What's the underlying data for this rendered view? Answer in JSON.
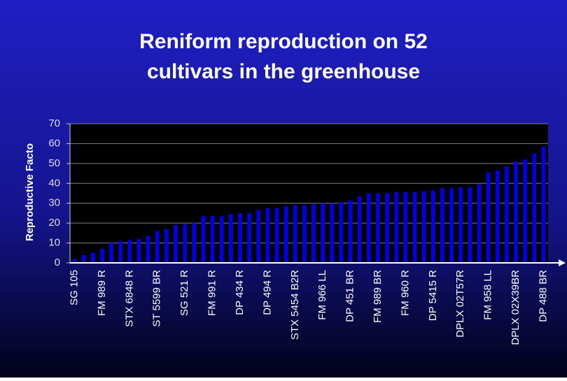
{
  "chart_data": {
    "type": "bar",
    "title": [
      "Reniform reproduction on 52",
      "cultivars in the greenhouse"
    ],
    "ylabel": "Reproductive Facto",
    "categories": [
      "SG 105",
      null,
      null,
      "FM 989 R",
      null,
      null,
      "STX 6848 R",
      null,
      null,
      "ST 5599 BR",
      null,
      null,
      "SG 521 R",
      null,
      null,
      "FM 991 R",
      null,
      null,
      "DP 434 R",
      null,
      null,
      "DP 494 R",
      null,
      null,
      "STX 5454 B2R",
      null,
      null,
      "FM 966 LL",
      null,
      null,
      "DP 451 BR",
      null,
      null,
      "FM 989 BR",
      null,
      null,
      "FM 960 R",
      null,
      null,
      "DP 5415 R",
      null,
      null,
      "DPLX 02T57R",
      null,
      null,
      "FM 958 LL",
      null,
      null,
      "DPLX 02X39BR",
      null,
      null,
      "DP 488 BR"
    ],
    "values": [
      2,
      4,
      5,
      7,
      10,
      11,
      11.5,
      12,
      13.5,
      16,
      17,
      19,
      19.5,
      20,
      23.5,
      23.5,
      23.5,
      24.5,
      25,
      25,
      26.5,
      27.5,
      27.5,
      28.5,
      29,
      29,
      29.5,
      30,
      30,
      30.5,
      31.5,
      33.5,
      35,
      35,
      35,
      35.5,
      35.5,
      35.5,
      36,
      36.5,
      37.5,
      37.5,
      38,
      38,
      39.5,
      45.5,
      46.5,
      48.5,
      51,
      52,
      55,
      58.5
    ],
    "color": "#0000e6",
    "ylim": [
      0,
      70
    ],
    "yticks": [
      0,
      10,
      20,
      30,
      40,
      50,
      60,
      70
    ],
    "grid": true
  }
}
